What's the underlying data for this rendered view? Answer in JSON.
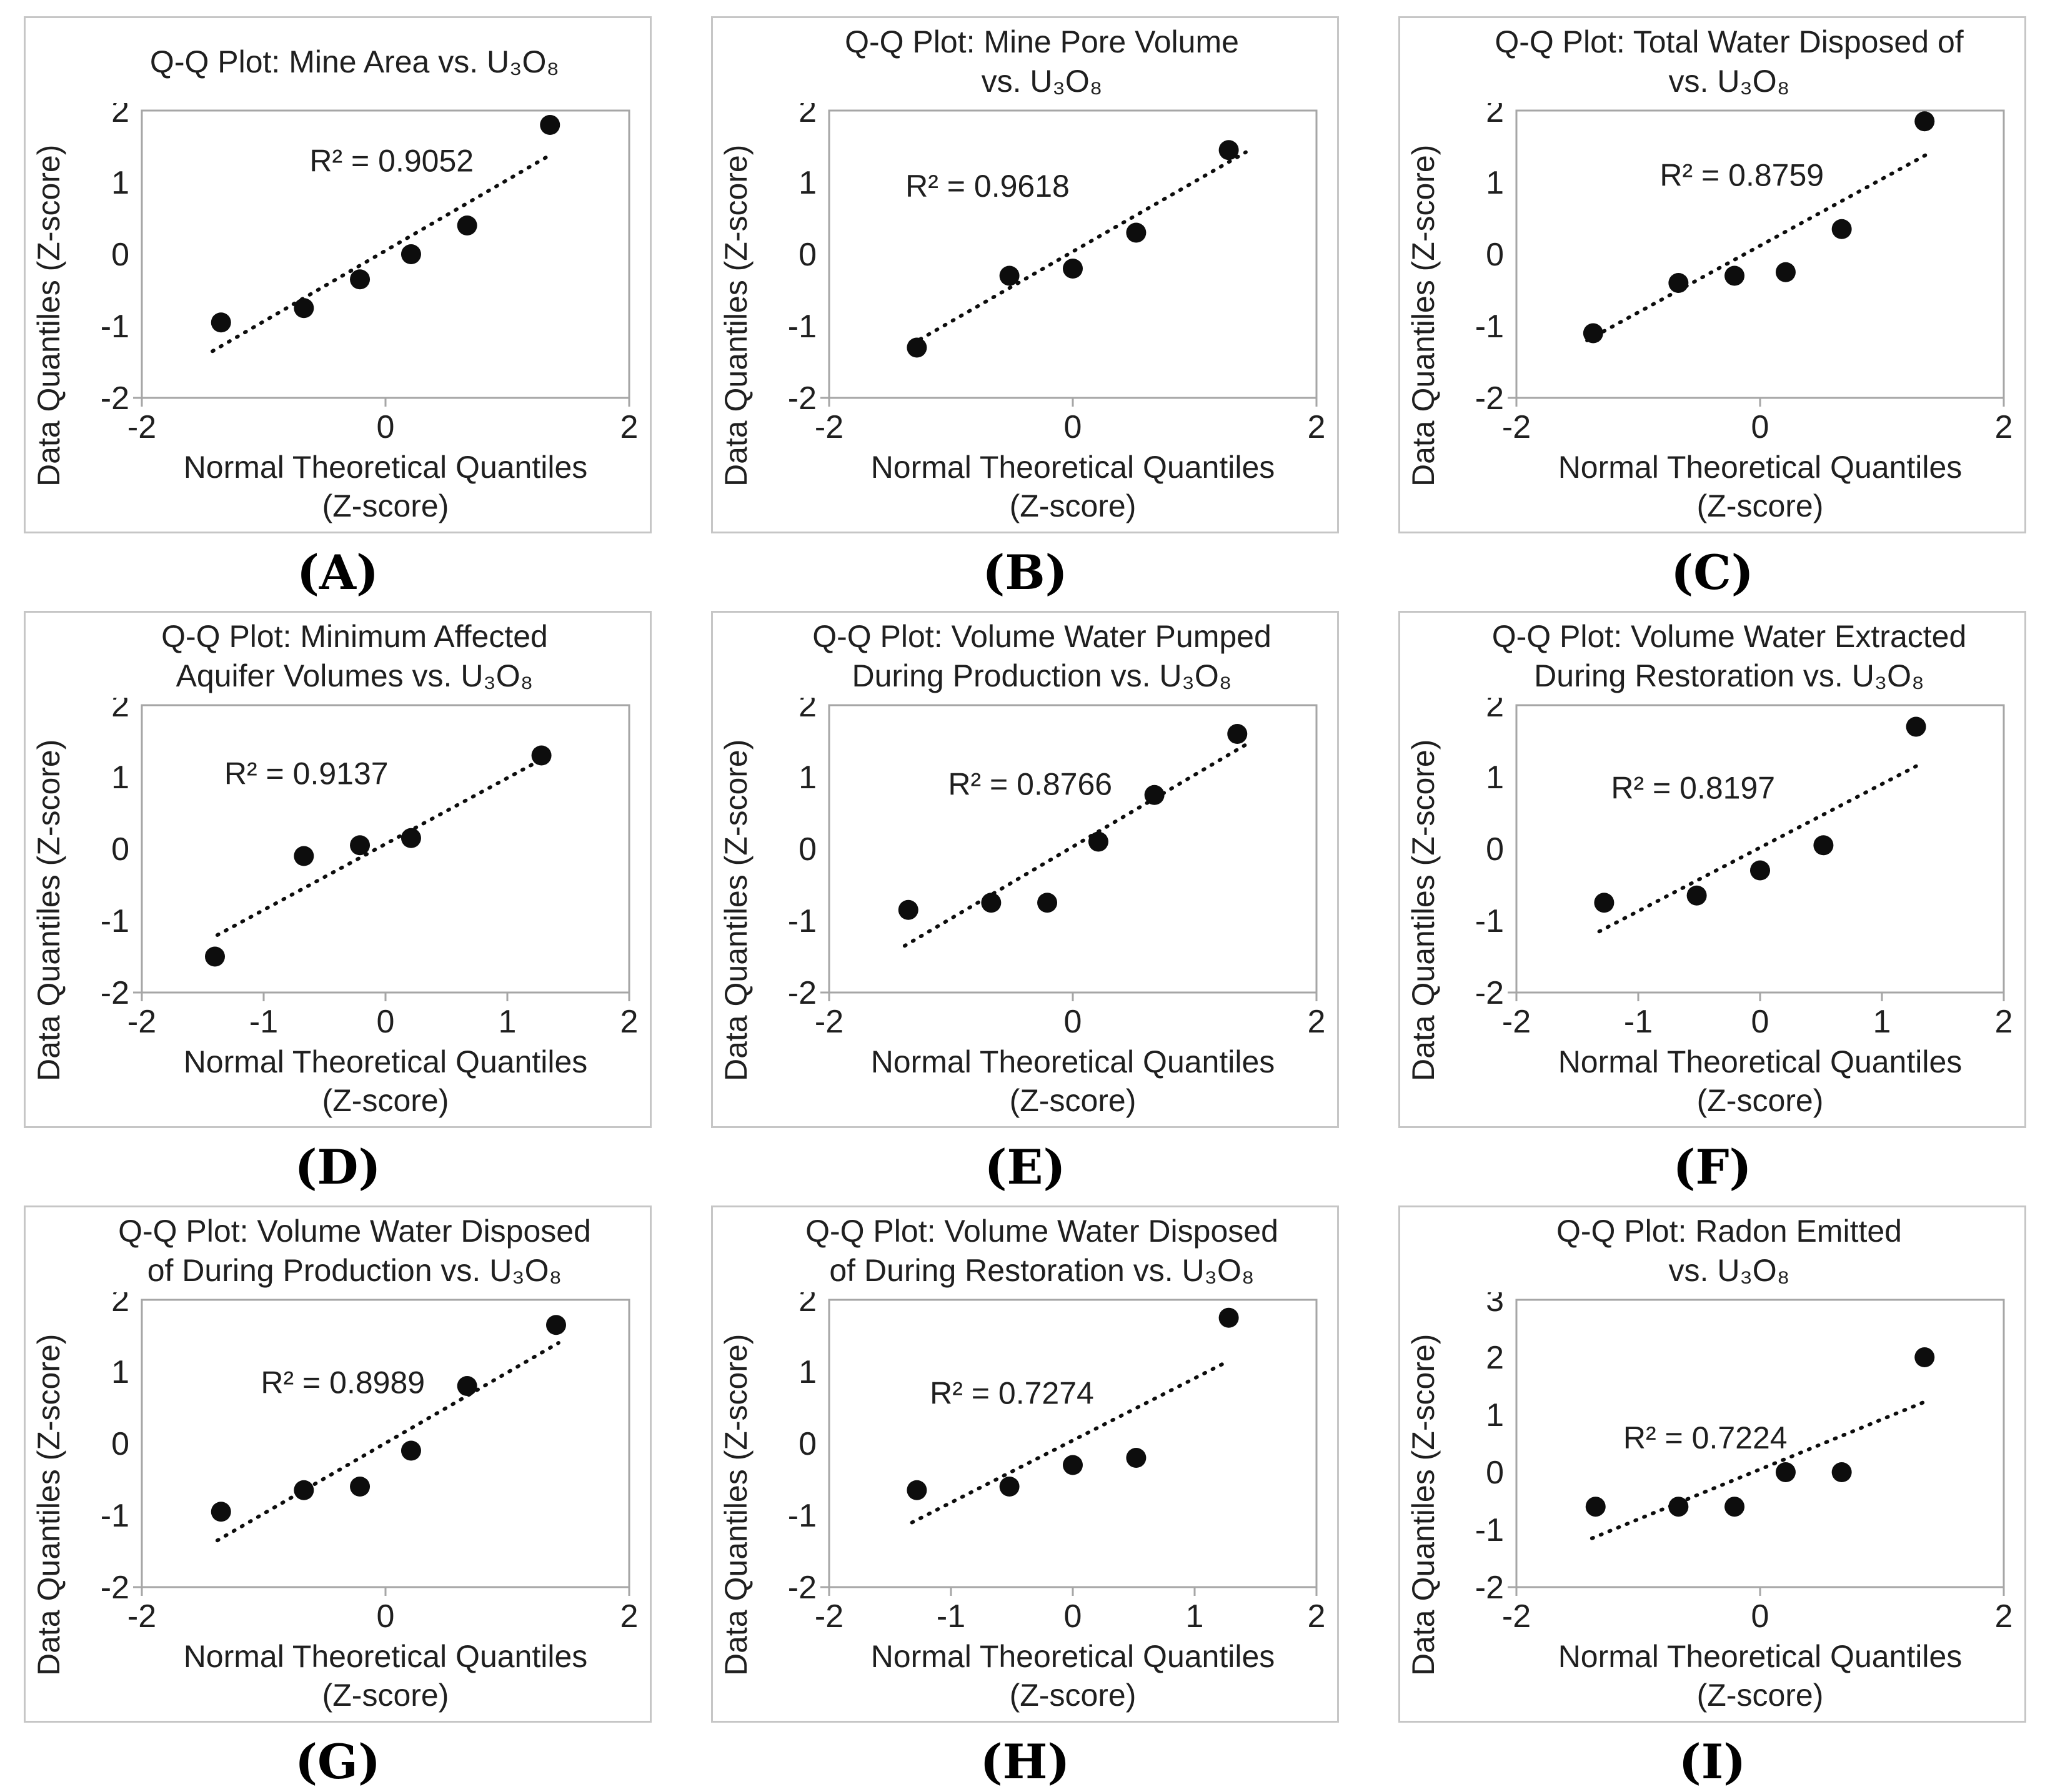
{
  "axes": {
    "y_label": "Data Quantiles (Z-score)",
    "x_label_line1": "Normal Theoretical Quantiles",
    "x_label_line2": "(Z-score)"
  },
  "chart_data": [
    {
      "type": "scatter",
      "label": "(A)",
      "title": "Q-Q Plot:  Mine Area vs. U₃O₈",
      "r2_text": "R² = 0.9052",
      "r2": 0.9052,
      "xlabel": "Normal Theoretical Quantiles (Z-score)",
      "ylabel": "Data Quantiles (Z-score)",
      "xlim": [
        -2,
        2
      ],
      "ylim": [
        -2,
        2
      ],
      "xticks": [
        -2,
        0,
        2
      ],
      "yticks": [
        -2,
        -1,
        0,
        1,
        2
      ],
      "points": [
        [
          -1.35,
          -0.95
        ],
        [
          -0.67,
          -0.75
        ],
        [
          -0.21,
          -0.35
        ],
        [
          0.21,
          0.0
        ],
        [
          0.67,
          0.4
        ],
        [
          1.35,
          1.8
        ]
      ],
      "trend": [
        [
          -1.42,
          -1.35
        ],
        [
          1.32,
          1.35
        ]
      ],
      "r2_pos": [
        0.05,
        1.3
      ]
    },
    {
      "type": "scatter",
      "label": "(B)",
      "title": "Q-Q Plot:  Mine Pore Volume\nvs. U₃O₈",
      "r2_text": "R² = 0.9618",
      "r2": 0.9618,
      "xlabel": "Normal Theoretical Quantiles (Z-score)",
      "ylabel": "Data Quantiles (Z-score)",
      "xlim": [
        -2,
        2
      ],
      "ylim": [
        -2,
        2
      ],
      "xticks": [
        -2,
        0,
        2
      ],
      "yticks": [
        -2,
        -1,
        0,
        1,
        2
      ],
      "points": [
        [
          -1.28,
          -1.3
        ],
        [
          -0.52,
          -0.3
        ],
        [
          0.0,
          -0.2
        ],
        [
          0.52,
          0.3
        ],
        [
          1.28,
          1.45
        ]
      ],
      "trend": [
        [
          -1.32,
          -1.25
        ],
        [
          1.42,
          1.42
        ]
      ],
      "r2_pos": [
        -0.7,
        0.95
      ]
    },
    {
      "type": "scatter",
      "label": "(C)",
      "title": "Q-Q Plot:  Total Water Disposed of\nvs. U₃O₈",
      "r2_text": "R² = 0.8759",
      "r2": 0.8759,
      "xlabel": "Normal Theoretical Quantiles (Z-score)",
      "ylabel": "Data Quantiles (Z-score)",
      "xlim": [
        -2,
        2
      ],
      "ylim": [
        -2,
        2
      ],
      "xticks": [
        -2,
        0,
        2
      ],
      "yticks": [
        -2,
        -1,
        0,
        1,
        2
      ],
      "points": [
        [
          -1.37,
          -1.1
        ],
        [
          -0.67,
          -0.4
        ],
        [
          -0.21,
          -0.3
        ],
        [
          0.21,
          -0.25
        ],
        [
          0.67,
          0.35
        ],
        [
          1.35,
          1.85
        ]
      ],
      "trend": [
        [
          -1.42,
          -1.2
        ],
        [
          1.38,
          1.4
        ]
      ],
      "r2_pos": [
        -0.15,
        1.1
      ]
    },
    {
      "type": "scatter",
      "label": "(D)",
      "title": "Q-Q Plot: Minimum  Affected\nAquifer Volumes vs. U₃O₈",
      "r2_text": "R² = 0.9137",
      "r2": 0.9137,
      "xlabel": "Normal Theoretical Quantiles (Z-score)",
      "ylabel": "Data Quantiles (Z-score)",
      "xlim": [
        -2,
        2
      ],
      "ylim": [
        -2,
        2
      ],
      "xticks": [
        -2,
        -1,
        0,
        1,
        2
      ],
      "yticks": [
        -2,
        -1,
        0,
        1,
        2
      ],
      "points": [
        [
          -1.4,
          -1.5
        ],
        [
          -0.67,
          -0.1
        ],
        [
          -0.21,
          0.05
        ],
        [
          0.21,
          0.15
        ],
        [
          1.28,
          1.3
        ]
      ],
      "trend": [
        [
          -1.38,
          -1.2
        ],
        [
          1.32,
          1.28
        ]
      ],
      "r2_pos": [
        -0.65,
        1.05
      ]
    },
    {
      "type": "scatter",
      "label": "(E)",
      "title": "Q-Q Plot:  Volume Water Pumped\nDuring Production vs. U₃O₈",
      "r2_text": "R² = 0.8766",
      "r2": 0.8766,
      "xlabel": "Normal Theoretical Quantiles (Z-score)",
      "ylabel": "Data Quantiles (Z-score)",
      "xlim": [
        -2,
        2
      ],
      "ylim": [
        -2,
        2
      ],
      "xticks": [
        -2,
        0,
        2
      ],
      "yticks": [
        -2,
        -1,
        0,
        1,
        2
      ],
      "points": [
        [
          -1.35,
          -0.85
        ],
        [
          -0.67,
          -0.75
        ],
        [
          -0.21,
          -0.75
        ],
        [
          0.21,
          0.1
        ],
        [
          0.67,
          0.75
        ],
        [
          1.35,
          1.6
        ]
      ],
      "trend": [
        [
          -1.38,
          -1.35
        ],
        [
          1.42,
          1.45
        ]
      ],
      "r2_pos": [
        -0.35,
        0.9
      ]
    },
    {
      "type": "scatter",
      "label": "(F)",
      "title": "Q-Q Plot:  Volume Water Extracted\nDuring Restoration vs. U₃O₈",
      "r2_text": "R² = 0.8197",
      "r2": 0.8197,
      "xlabel": "Normal Theoretical Quantiles (Z-score)",
      "ylabel": "Data Quantiles (Z-score)",
      "xlim": [
        -2,
        2
      ],
      "ylim": [
        -2,
        2
      ],
      "xticks": [
        -2,
        -1,
        0,
        1,
        2
      ],
      "yticks": [
        -2,
        -1,
        0,
        1,
        2
      ],
      "points": [
        [
          -1.28,
          -0.75
        ],
        [
          -0.52,
          -0.65
        ],
        [
          0.0,
          -0.3
        ],
        [
          0.52,
          0.05
        ],
        [
          1.28,
          1.7
        ]
      ],
      "trend": [
        [
          -1.32,
          -1.15
        ],
        [
          1.28,
          1.15
        ]
      ],
      "r2_pos": [
        -0.55,
        0.85
      ]
    },
    {
      "type": "scatter",
      "label": "(G)",
      "title": "Q-Q Plot:  Volume Water Disposed\nof During Production vs. U₃O₈",
      "r2_text": "R² = 0.8989",
      "r2": 0.8989,
      "xlabel": "Normal Theoretical Quantiles (Z-score)",
      "ylabel": "Data Quantiles (Z-score)",
      "xlim": [
        -2,
        2
      ],
      "ylim": [
        -2,
        2
      ],
      "xticks": [
        -2,
        0,
        2
      ],
      "yticks": [
        -2,
        -1,
        0,
        1,
        2
      ],
      "points": [
        [
          -1.35,
          -0.95
        ],
        [
          -0.67,
          -0.65
        ],
        [
          -0.21,
          -0.6
        ],
        [
          0.21,
          -0.1
        ],
        [
          0.67,
          0.8
        ],
        [
          1.4,
          1.65
        ]
      ],
      "trend": [
        [
          -1.38,
          -1.35
        ],
        [
          1.42,
          1.4
        ]
      ],
      "r2_pos": [
        -0.35,
        0.85
      ]
    },
    {
      "type": "scatter",
      "label": "(H)",
      "title": "Q-Q Plot:  Volume Water Disposed\nof During Restoration vs. U₃O₈",
      "r2_text": "R² = 0.7274",
      "r2": 0.7274,
      "xlabel": "Normal Theoretical Quantiles (Z-score)",
      "ylabel": "Data Quantiles (Z-score)",
      "xlim": [
        -2,
        2
      ],
      "ylim": [
        -2,
        2
      ],
      "xticks": [
        -2,
        -1,
        0,
        1,
        2
      ],
      "yticks": [
        -2,
        -1,
        0,
        1,
        2
      ],
      "points": [
        [
          -1.28,
          -0.65
        ],
        [
          -0.52,
          -0.6
        ],
        [
          0.0,
          -0.3
        ],
        [
          0.52,
          -0.2
        ],
        [
          1.28,
          1.75
        ]
      ],
      "trend": [
        [
          -1.32,
          -1.1
        ],
        [
          1.28,
          1.15
        ]
      ],
      "r2_pos": [
        -0.5,
        0.7
      ]
    },
    {
      "type": "scatter",
      "label": "(I)",
      "title": "Q-Q Plot:  Radon Emitted\nvs. U₃O₈",
      "r2_text": "R² = 0.7224",
      "r2": 0.7224,
      "xlabel": "Normal Theoretical Quantiles (Z-score)",
      "ylabel": "Data Quantiles (Z-score)",
      "xlim": [
        -2,
        2
      ],
      "ylim": [
        -2,
        3
      ],
      "xticks": [
        -2,
        0,
        2
      ],
      "yticks": [
        -2,
        -1,
        0,
        1,
        2,
        3
      ],
      "points": [
        [
          -1.35,
          -0.6
        ],
        [
          -0.67,
          -0.6
        ],
        [
          -0.21,
          -0.6
        ],
        [
          0.21,
          0.0
        ],
        [
          0.67,
          0.0
        ],
        [
          1.35,
          2.0
        ]
      ],
      "trend": [
        [
          -1.38,
          -1.15
        ],
        [
          1.38,
          1.25
        ]
      ],
      "r2_pos": [
        -0.45,
        0.6
      ]
    }
  ]
}
